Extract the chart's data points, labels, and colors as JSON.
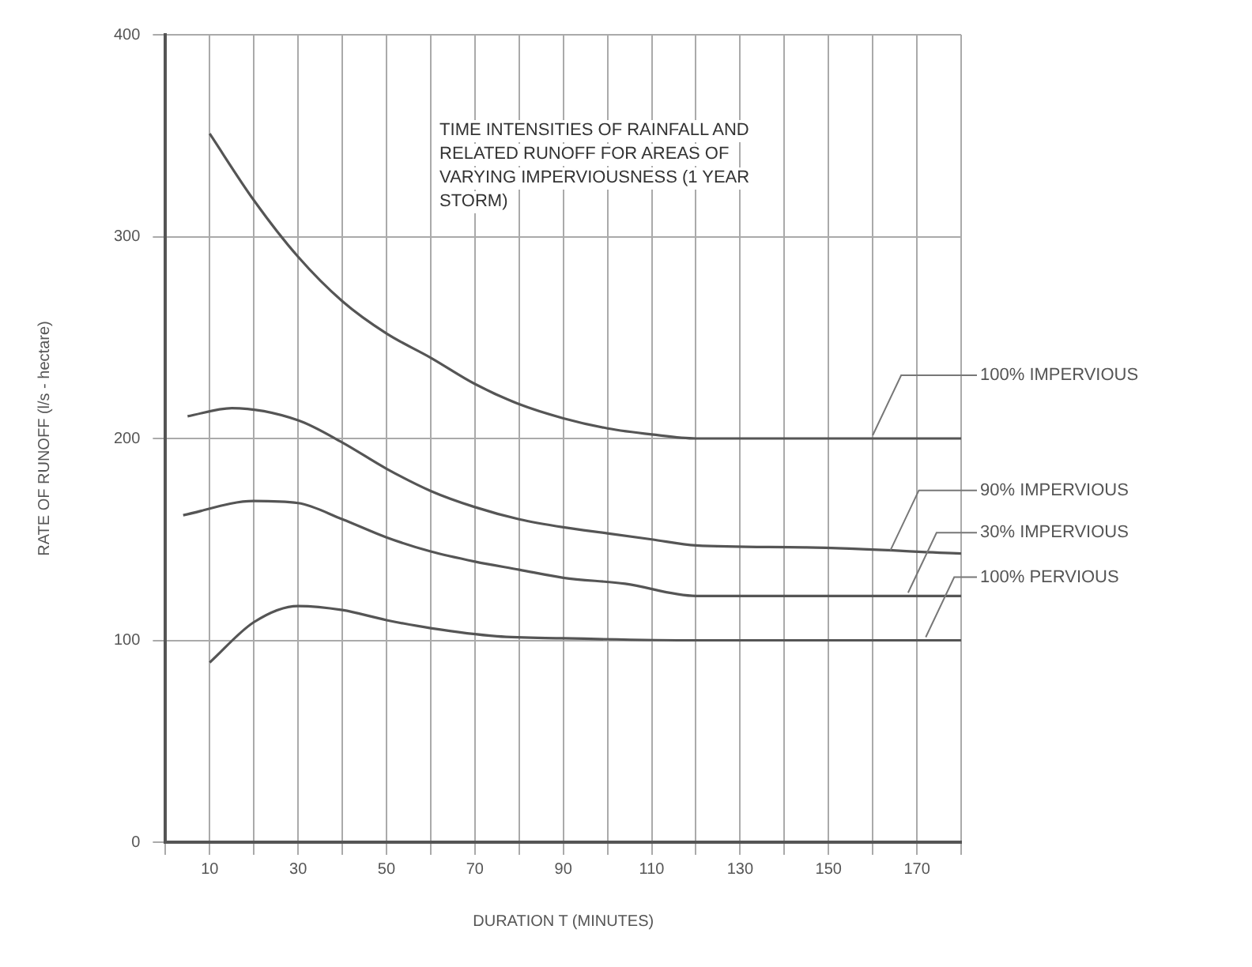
{
  "chart_data": {
    "type": "line",
    "title": "TIME INTENSITIES OF RAINFALL AND RELATED RUNOFF FOR AREAS OF VARYING IMPERVIOUSNESS (1 YEAR STORM)",
    "xlabel": "DURATION T (MINUTES)",
    "ylabel": "RATE OF RUNOFF (l/s - hectare)",
    "xlim": [
      0,
      180
    ],
    "xticks": [
      {
        "value": 0,
        "label": null
      },
      10,
      {
        "value": 20,
        "label": null
      },
      30,
      {
        "value": 40,
        "label": null
      },
      50,
      {
        "value": 60,
        "label": null
      },
      70,
      {
        "value": 80,
        "label": null
      },
      90,
      {
        "value": 100,
        "label": null
      },
      110,
      {
        "value": 120,
        "label": null
      },
      130,
      {
        "value": 140,
        "label": null
      },
      150,
      {
        "value": 160,
        "label": null
      },
      170,
      {
        "value": 180,
        "label": null
      }
    ],
    "ylim": [
      0,
      400
    ],
    "yticks": [
      0,
      100,
      200,
      300,
      400
    ],
    "grid": true,
    "legend": false,
    "marker": "none",
    "line_style": "solid",
    "series": [
      {
        "name": "100% IMPERVIOUS",
        "color": "#555555",
        "x": [
          10,
          20,
          30,
          40,
          50,
          60,
          70,
          80,
          90,
          100,
          110,
          120,
          180
        ],
        "values": [
          351,
          318,
          290,
          268,
          252,
          240,
          227,
          217,
          210,
          205,
          202,
          200,
          200
        ]
      },
      {
        "name": "90% IMPERVIOUS",
        "color": "#555555",
        "x": [
          5,
          15,
          30,
          40,
          50,
          60,
          70,
          80,
          90,
          100,
          110,
          120,
          145,
          180
        ],
        "values": [
          211,
          215,
          209,
          198,
          185,
          174,
          166,
          160,
          156,
          153,
          150,
          147,
          146,
          143
        ]
      },
      {
        "name": "30% IMPERVIOUS",
        "color": "#555555",
        "x": [
          4,
          20,
          30,
          40,
          50,
          60,
          70,
          80,
          90,
          104,
          120,
          180
        ],
        "values": [
          162,
          169,
          168,
          160,
          151,
          144,
          139,
          135,
          131,
          128,
          122,
          122
        ]
      },
      {
        "name": "100% PERVIOUS",
        "color": "#555555",
        "x": [
          10,
          20,
          30,
          40,
          50,
          60,
          75,
          90,
          120,
          180
        ],
        "values": [
          89,
          109,
          117,
          115,
          110,
          106,
          102,
          101,
          100,
          100
        ]
      }
    ]
  }
}
